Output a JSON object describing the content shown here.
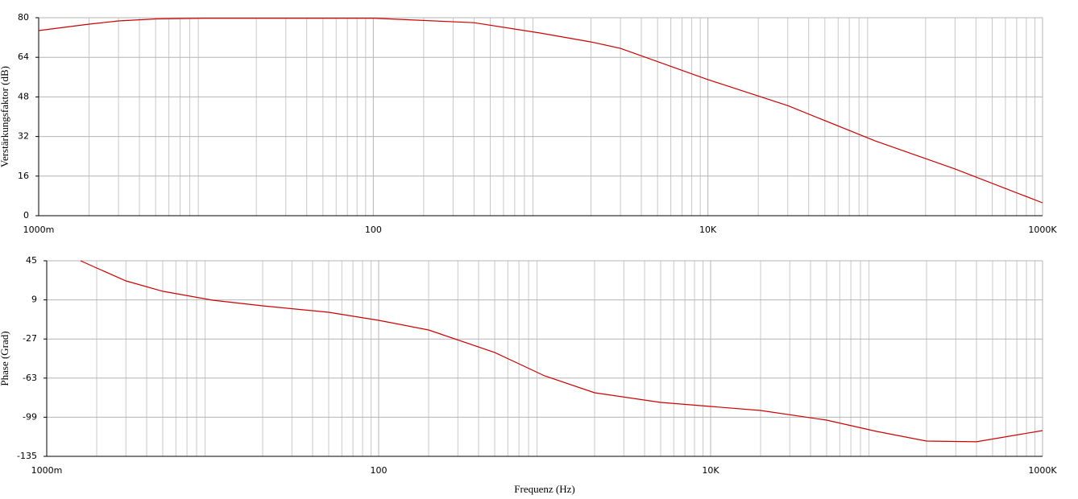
{
  "chart_data": [
    {
      "type": "line",
      "ylabel": "Verstärkungsfaktor (dB)",
      "xscale": "log",
      "grid": true,
      "minor_grid": true,
      "xlim": [
        1,
        1000000
      ],
      "xticks": [
        {
          "value": 1,
          "label": "1000m"
        },
        100,
        {
          "value": 10000,
          "label": "10K"
        },
        {
          "value": 1000000,
          "label": "1000K"
        }
      ],
      "ylim": [
        0,
        80
      ],
      "yticks": [
        0,
        16,
        32,
        48,
        64,
        80
      ],
      "x": [
        1,
        2,
        3,
        5,
        10,
        100,
        400,
        1000,
        2000,
        3000,
        10000,
        30000,
        100000,
        300000,
        1000000
      ],
      "series": [
        {
          "color": "#cc0000",
          "values": [
            74.8,
            77.4,
            78.7,
            79.5,
            79.8,
            79.8,
            78,
            73.8,
            70.2,
            67.6,
            55,
            44.5,
            30.2,
            18.9,
            5.2
          ]
        }
      ]
    },
    {
      "type": "line",
      "ylabel": "Phase (Grad)",
      "xlabel": "Frequenz (Hz)",
      "xscale": "log",
      "grid": true,
      "minor_grid": true,
      "xlim": [
        1,
        1000000
      ],
      "xticks": [
        {
          "value": 1,
          "label": "1000m"
        },
        100,
        {
          "value": 10000,
          "label": "10K"
        },
        {
          "value": 1000000,
          "label": "1000K"
        }
      ],
      "ylim": [
        -135,
        45
      ],
      "yticks": [
        -135,
        -99,
        -63,
        -27,
        9,
        45
      ],
      "x": [
        1.6,
        2,
        3,
        5,
        10,
        20,
        50,
        100,
        200,
        500,
        1000,
        2000,
        5000,
        10000,
        20000,
        50000,
        100000,
        200000,
        400000,
        1000000
      ],
      "series": [
        {
          "color": "#cc0000",
          "values": [
            45,
            38.3,
            26.5,
            16.9,
            8.7,
            3.5,
            -2.4,
            -9.8,
            -18.7,
            -39.4,
            -60.9,
            -76.5,
            -85.4,
            -89.1,
            -92.8,
            -101.7,
            -112,
            -120.9,
            -121.6,
            -111.3
          ]
        }
      ]
    }
  ]
}
